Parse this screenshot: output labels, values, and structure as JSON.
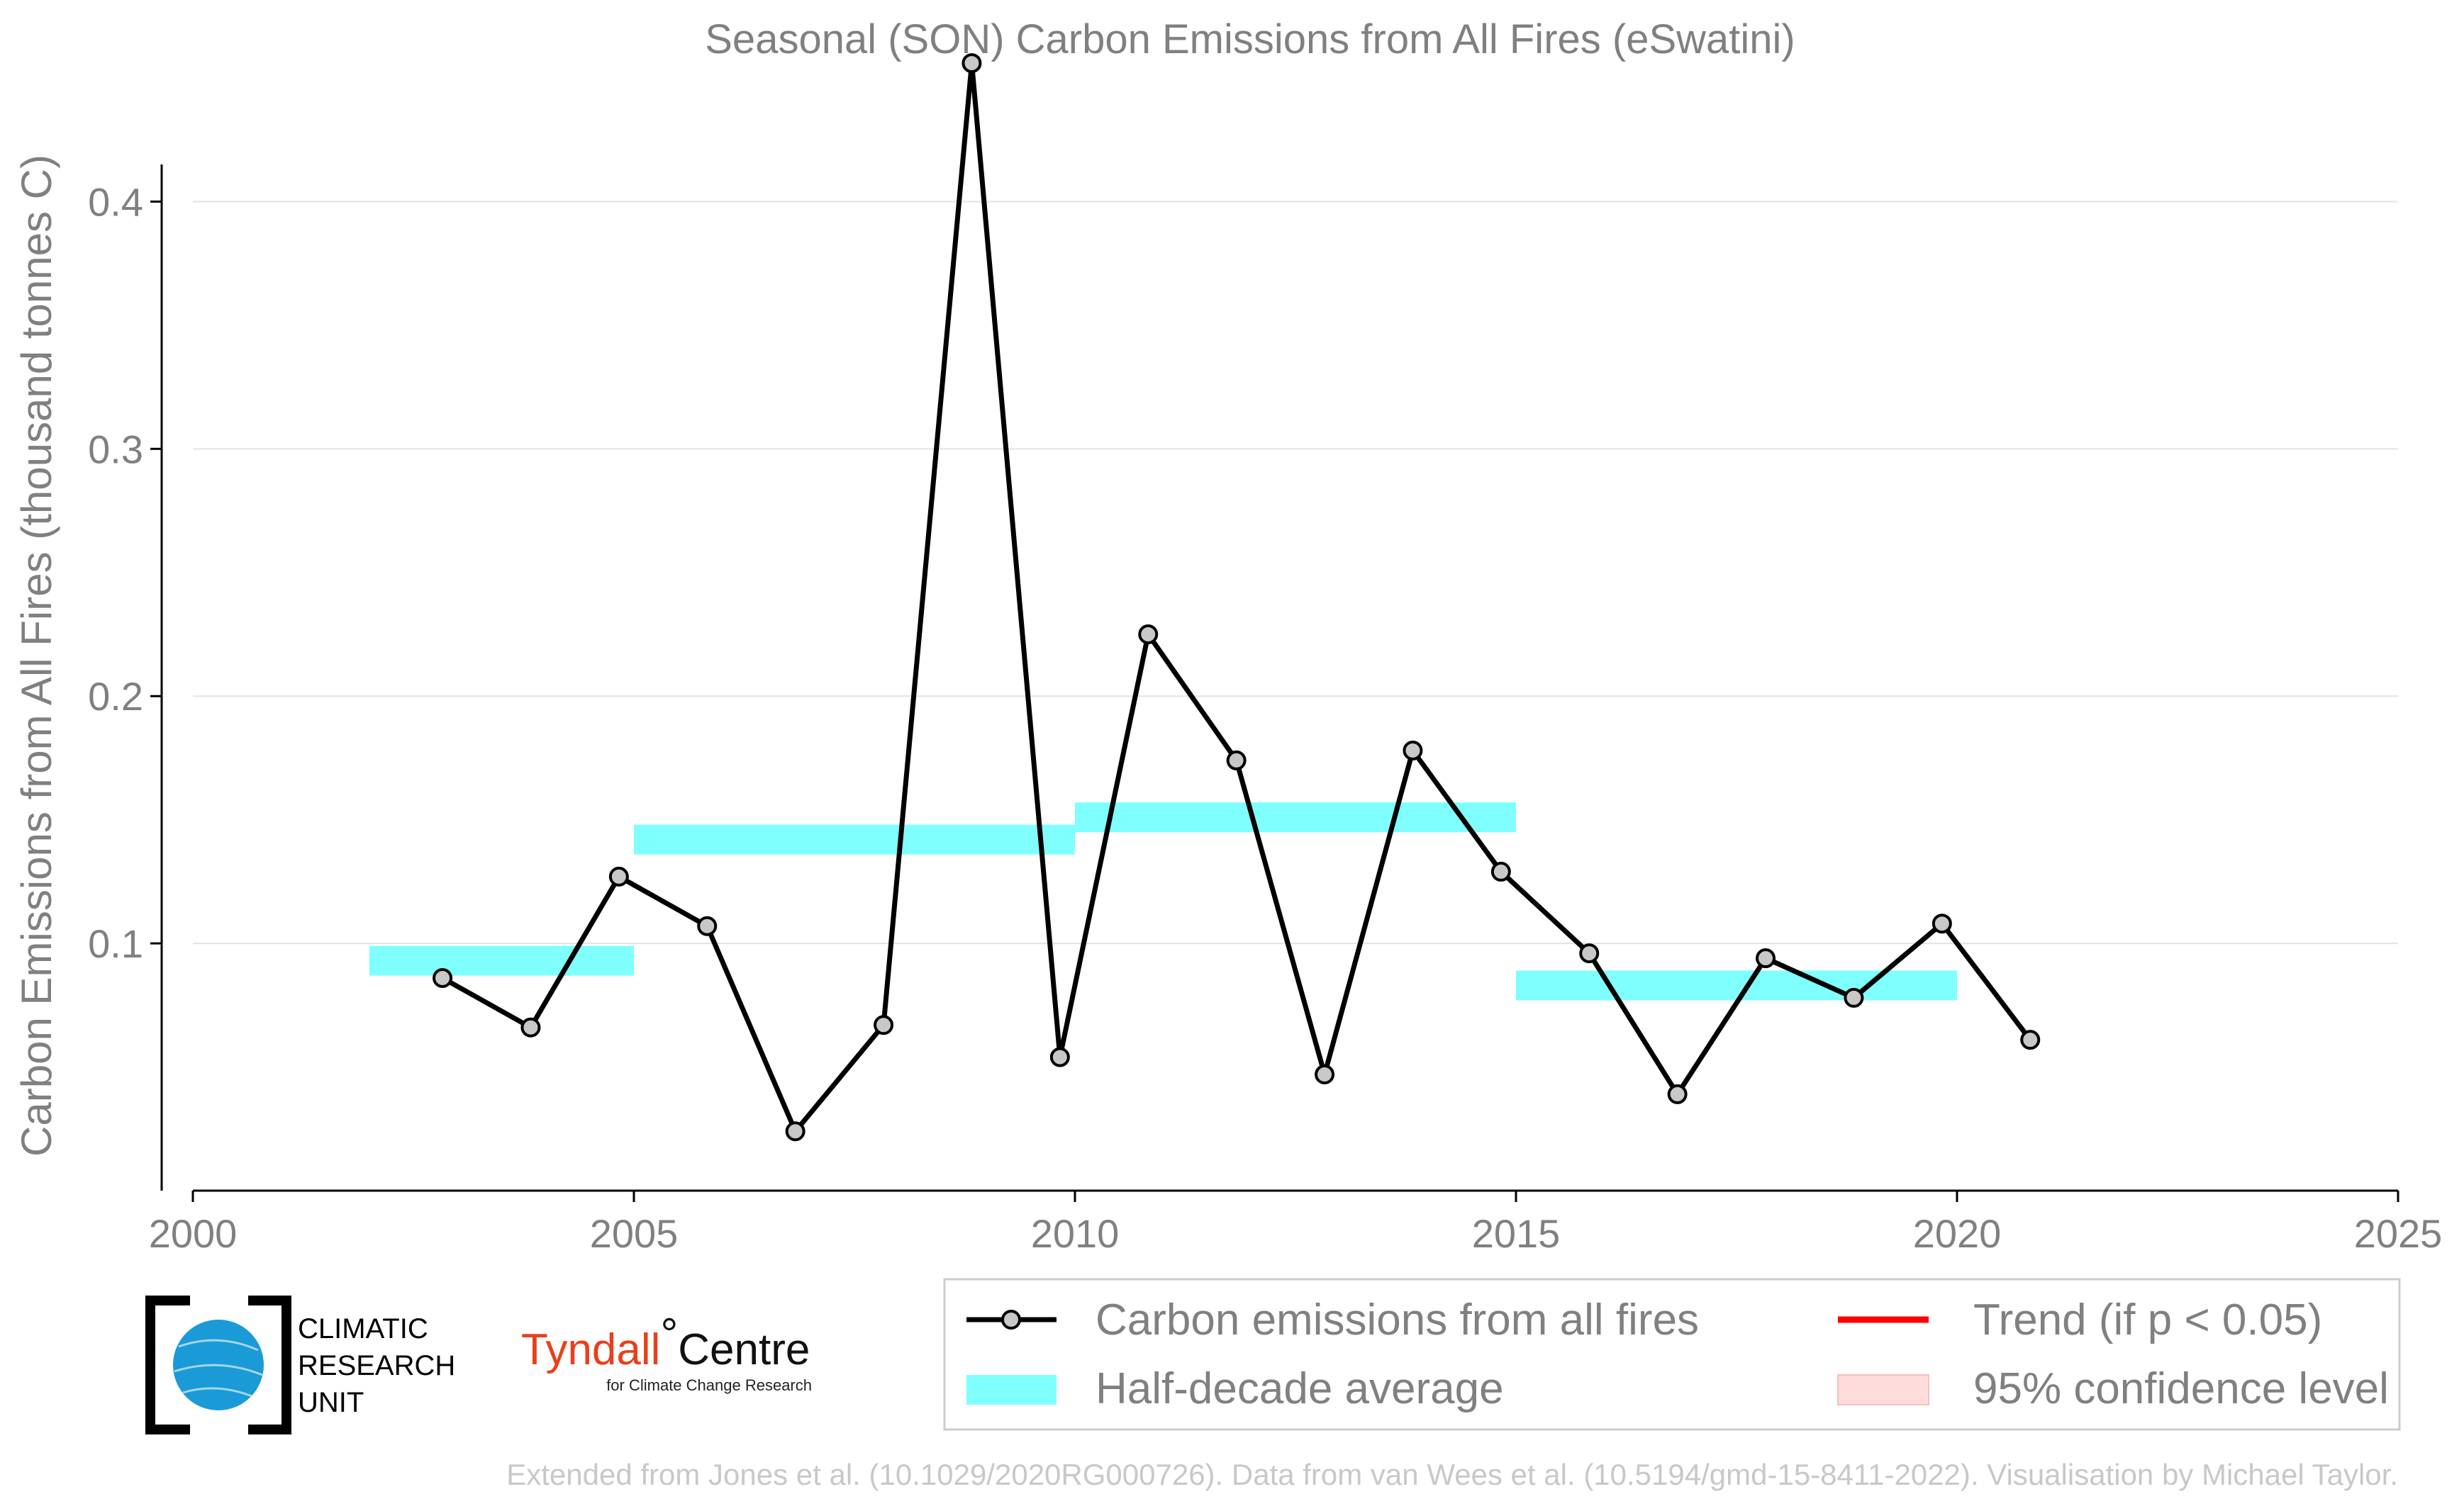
{
  "chart_data": {
    "type": "line",
    "title": "Seasonal (SON) Carbon Emissions from All Fires (eSwatini)",
    "xlabel": "",
    "ylabel": "Carbon Emissions from All Fires (thousand tonnes C)",
    "xlim": [
      2000,
      2025
    ],
    "ylim": [
      0,
      0.45
    ],
    "xticks": [
      2000,
      2005,
      2010,
      2015,
      2020,
      2025
    ],
    "yticks": [
      0.1,
      0.2,
      0.3,
      0.4
    ],
    "ytick_labels": [
      "0.1",
      "0.2",
      "0.3",
      "0.4"
    ],
    "grid": "horizontal",
    "legend_position": "bottom-right",
    "series": [
      {
        "name": "Carbon emissions from all fires",
        "x": [
          2002.83,
          2003.83,
          2004.83,
          2005.83,
          2006.83,
          2007.83,
          2008.83,
          2009.83,
          2010.83,
          2011.83,
          2012.83,
          2013.83,
          2014.83,
          2015.83,
          2016.83,
          2017.83,
          2018.83,
          2019.83,
          2020.83
        ],
        "values": [
          0.086,
          0.066,
          0.127,
          0.107,
          0.024,
          0.067,
          0.456,
          0.054,
          0.225,
          0.174,
          0.047,
          0.178,
          0.129,
          0.096,
          0.039,
          0.094,
          0.078,
          0.108,
          0.061
        ],
        "color": "#000000",
        "marker_fill": "#c8c8c8"
      }
    ],
    "half_decade_average": {
      "name": "Half-decade average",
      "color": "#80ffff",
      "segments": [
        {
          "x0": 2002,
          "x1": 2005,
          "value": 0.093
        },
        {
          "x0": 2005,
          "x1": 2010,
          "value": 0.142
        },
        {
          "x0": 2010,
          "x1": 2015,
          "value": 0.151
        },
        {
          "x0": 2015,
          "x1": 2020,
          "value": 0.083
        }
      ]
    },
    "trend": {
      "name": "Trend (if p < 0.05)",
      "color": "#ff0000"
    },
    "confidence": {
      "name": "95% confidence level",
      "color": "#ffdcdc"
    }
  },
  "logos": {
    "cru": [
      "CLIMATIC",
      "RESEARCH",
      "UNIT"
    ],
    "tyndall_name_red": "Tyndall",
    "tyndall_name_black": "Centre",
    "tyndall_sub": "for Climate Change Research"
  },
  "footer": "Extended from Jones et al. (10.1029/2020RG000726). Data from van Wees et al. (10.5194/gmd-15-8411-2022). Visualisation by Michael Taylor."
}
